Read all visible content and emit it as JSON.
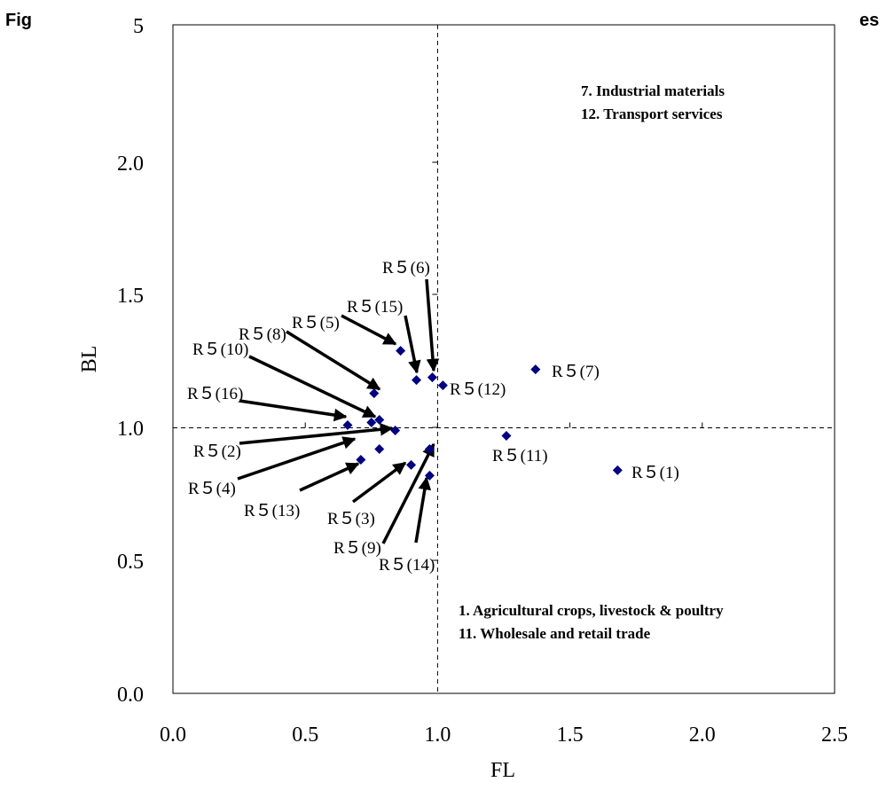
{
  "header": {
    "left_fragment": "Fig",
    "right_fragment": "es"
  },
  "chart_data": {
    "type": "scatter",
    "xlabel": "FL",
    "ylabel": "BL",
    "xlim": [
      0.0,
      2.5
    ],
    "x_ticks": [
      "0.0",
      "0.5",
      "1.0",
      "1.5",
      "2.0",
      "2.5"
    ],
    "y_ticks": [
      "0.0",
      "0.5",
      "1.0",
      "1.5",
      "2.0",
      "5"
    ],
    "reference_lines": {
      "x": 1.0,
      "y": 1.0,
      "style": "dashed"
    },
    "marker_color": "#000080",
    "points": [
      {
        "label": "R５(1)",
        "x": 1.68,
        "y": 0.84
      },
      {
        "label": "R５(2)",
        "x": 0.84,
        "y": 0.99
      },
      {
        "label": "R５(3)",
        "x": 0.9,
        "y": 0.86
      },
      {
        "label": "R５(4)",
        "x": 0.71,
        "y": 0.88
      },
      {
        "label": "R５(5)",
        "x": 0.76,
        "y": 1.13
      },
      {
        "label": "R５(6)",
        "x": 0.98,
        "y": 1.19
      },
      {
        "label": "R５(7)",
        "x": 1.37,
        "y": 1.22
      },
      {
        "label": "R５(8)",
        "x": 0.78,
        "y": 1.03
      },
      {
        "label": "R５(9)",
        "x": 0.97,
        "y": 0.92
      },
      {
        "label": "R５(10)",
        "x": 0.78,
        "y": 0.92
      },
      {
        "label": "R５(11)",
        "x": 1.26,
        "y": 0.97
      },
      {
        "label": "R５(12)",
        "x": 1.02,
        "y": 1.16
      },
      {
        "label": "R５(13)",
        "x": 0.75,
        "y": 1.02
      },
      {
        "label": "R５(14)",
        "x": 0.97,
        "y": 0.82
      },
      {
        "label": "R５(15)",
        "x": 0.92,
        "y": 1.18
      },
      {
        "label": "R５(16)",
        "x": 0.66,
        "y": 1.01
      },
      {
        "label": "",
        "x": 0.86,
        "y": 1.29
      }
    ],
    "annotations": [
      "7. Industrial materials",
      "12. Transport services",
      "1. Agricultural crops, livestock & poultry",
      "11. Wholesale and retail trade"
    ]
  }
}
